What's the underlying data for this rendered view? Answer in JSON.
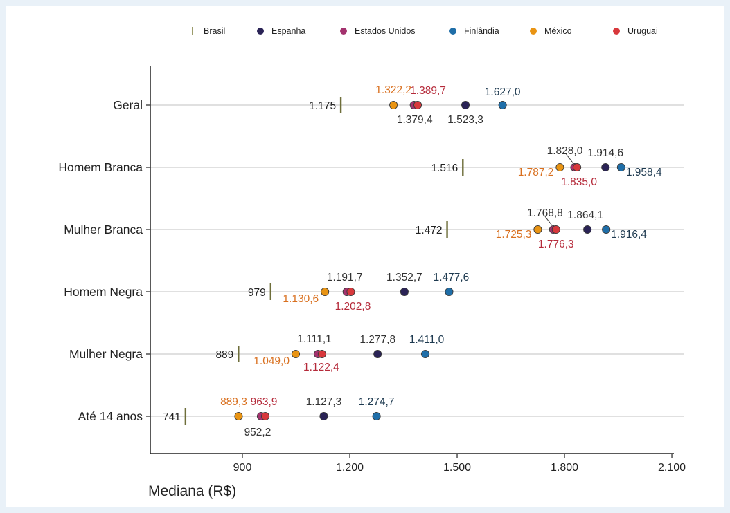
{
  "chart_data": {
    "type": "dot",
    "title": "",
    "xlabel": "Mediana (R$)",
    "ylabel": "",
    "xlim": [
      640,
      2110
    ],
    "x_ticks": [
      {
        "value": 900,
        "label": "900"
      },
      {
        "value": 1200,
        "label": "1.200"
      },
      {
        "value": 1500,
        "label": "1.500"
      },
      {
        "value": 1800,
        "label": "1.800"
      },
      {
        "value": 2100,
        "label": "2.100"
      }
    ],
    "grid": "horizontal lines per category",
    "legend_placement": "top",
    "legend": [
      {
        "name": "Brasil",
        "marker": "tick",
        "color": "#7a7a3a"
      },
      {
        "name": "Espanha",
        "marker": "dot",
        "color": "#2a2356"
      },
      {
        "name": "Estados Unidos",
        "marker": "dot",
        "color": "#a3326e"
      },
      {
        "name": "Finlândia",
        "marker": "dot",
        "color": "#1f6ea8"
      },
      {
        "name": "México",
        "marker": "dot",
        "color": "#e99413"
      },
      {
        "name": "Uruguai",
        "marker": "dot",
        "color": "#d8383c"
      }
    ],
    "categories": [
      "Geral",
      "Homem Branca",
      "Mulher Branca",
      "Homem Negra",
      "Mulher Negra",
      "Até 14 anos"
    ],
    "brasil": [
      {
        "value": 1175,
        "label": "1.175"
      },
      {
        "value": 1516,
        "label": "1.516"
      },
      {
        "value": 1472,
        "label": "1.472"
      },
      {
        "value": 979,
        "label": "979"
      },
      {
        "value": 889,
        "label": "889"
      },
      {
        "value": 741,
        "label": "741"
      }
    ],
    "series": [
      {
        "name": "México",
        "color": "#e99413",
        "label_color": "#d9701f",
        "values": [
          1322.2,
          1787.2,
          1725.3,
          1130.6,
          1049.0,
          889.3
        ],
        "labels": [
          "1.322,2",
          "1.787,2",
          "1.725,3",
          "1.130,6",
          "1.049,0",
          "889,3"
        ]
      },
      {
        "name": "Estados Unidos",
        "color": "#a3326e",
        "label_color": "#333333",
        "values": [
          1379.4,
          1828.0,
          1768.8,
          1191.7,
          1111.1,
          952.2
        ],
        "labels": [
          "1.379,4",
          "1.828,0",
          "1.768,8",
          "1.191,7",
          "1.111,1",
          "952,2"
        ]
      },
      {
        "name": "Uruguai",
        "color": "#d8383c",
        "label_color": "#b52a3a",
        "values": [
          1389.7,
          1835.0,
          1776.3,
          1202.8,
          1122.4,
          963.9
        ],
        "labels": [
          "1.389,7",
          "1.835,0",
          "1.776,3",
          "1.202,8",
          "1.122,4",
          "963,9"
        ]
      },
      {
        "name": "Espanha",
        "color": "#2a2356",
        "label_color": "#333333",
        "values": [
          1523.3,
          1914.6,
          1864.1,
          1352.7,
          1277.8,
          1127.3
        ],
        "labels": [
          "1.523,3",
          "1.914,6",
          "1.864,1",
          "1.352,7",
          "1.277,8",
          "1.127,3"
        ]
      },
      {
        "name": "Finlândia",
        "color": "#1f6ea8",
        "label_color": "#1e3a50",
        "values": [
          1627.0,
          1958.4,
          1916.4,
          1477.6,
          1411.0,
          1274.7
        ],
        "labels": [
          "1.627,0",
          "1.958,4",
          "1.916,4",
          "1.477,6",
          "1.411,0",
          "1.274,7"
        ]
      }
    ]
  }
}
